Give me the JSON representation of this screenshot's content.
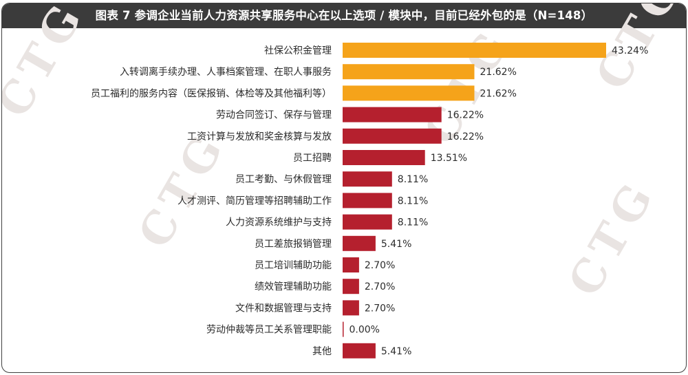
{
  "chart_data": {
    "type": "bar",
    "orientation": "horizontal",
    "title": "图表 7 参调企业当前人力资源共享服务中心在以上选项 / 模块中，目前已经外包的是（N=148）",
    "categories": [
      "社保公积金管理",
      "入转调离手续办理、人事档案管理、在职人事服务",
      "员工福利的服务内容（医保报销、体检等及其他福利等）",
      "劳动合同签订、保存与管理",
      "工资计算与发放和奖金核算与发放",
      "员工招聘",
      "员工考勤、与休假管理",
      "人才测评、简历管理等招聘辅助工作",
      "人力资源系统维护与支持",
      "员工差旅报销管理",
      "员工培训辅助功能",
      "绩效管理辅助功能",
      "文件和数据管理与支持",
      "劳动仲裁等员工关系管理职能",
      "其他"
    ],
    "values": [
      43.24,
      21.62,
      21.62,
      16.22,
      16.22,
      13.51,
      8.11,
      8.11,
      8.11,
      5.41,
      2.7,
      2.7,
      2.7,
      0.0,
      5.41
    ],
    "value_labels": [
      "43.24%",
      "21.62%",
      "21.62%",
      "16.22%",
      "16.22%",
      "13.51%",
      "8.11%",
      "8.11%",
      "8.11%",
      "5.41%",
      "2.70%",
      "2.70%",
      "2.70%",
      "0.00%",
      "5.41%"
    ],
    "unit": "%",
    "colors": {
      "highlight": "#f5a31a",
      "default": "#b5202e",
      "title_bar": "#3b3b3b"
    },
    "highlight_top_n": 3,
    "grid": false,
    "legend": "none",
    "watermark": "CTG"
  }
}
